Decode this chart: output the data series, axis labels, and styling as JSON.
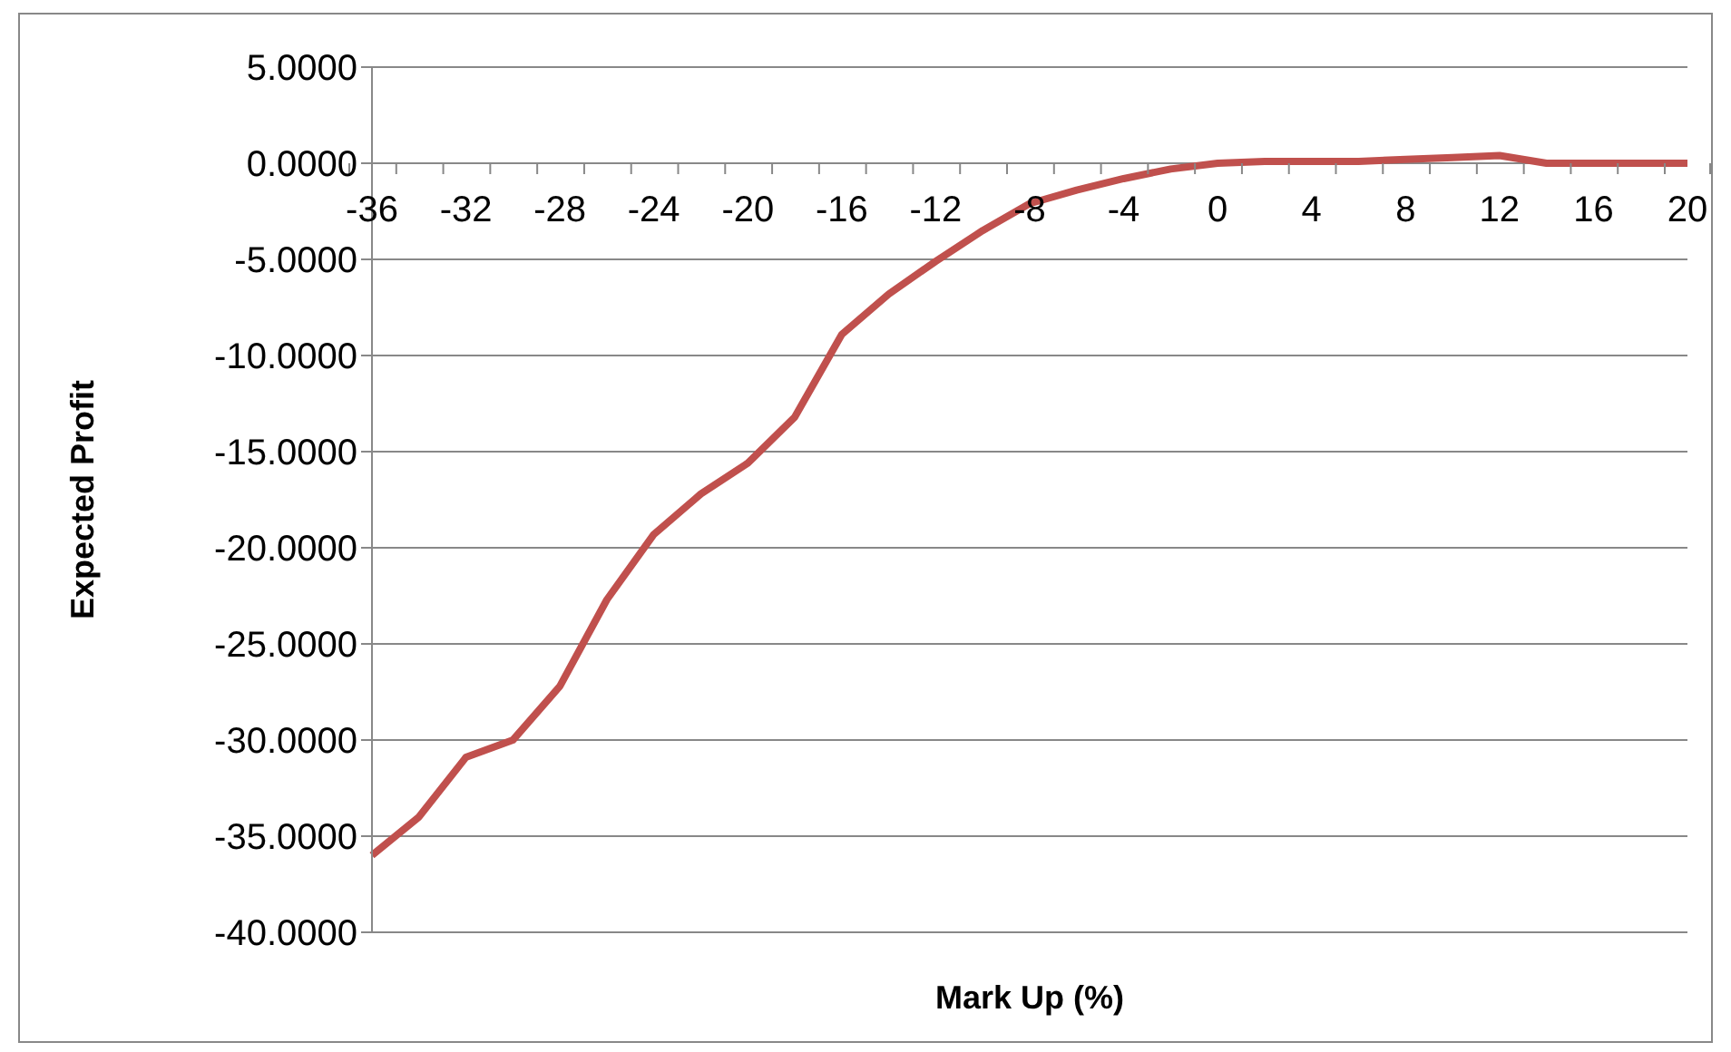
{
  "chart_data": {
    "type": "line",
    "xlabel": "Mark Up (%)",
    "ylabel": "Expected Profit",
    "categories": [
      "-36",
      null,
      "-32",
      null,
      "-28",
      null,
      "-24",
      null,
      "-20",
      null,
      "-16",
      null,
      "-12",
      null,
      "-8",
      null,
      "-4",
      null,
      "0",
      null,
      "4",
      null,
      "8",
      null,
      "12",
      null,
      "16",
      null,
      "20"
    ],
    "values": [
      -36.0,
      -34.0,
      -30.9,
      -30.0,
      -27.2,
      -22.7,
      -19.3,
      -17.2,
      -15.6,
      -13.2,
      -8.9,
      -6.8,
      -5.1,
      -3.5,
      -2.1,
      -1.4,
      -0.8,
      -0.3,
      0,
      0.1,
      0.1,
      0.1,
      0.2,
      0.3,
      0.4,
      0,
      0,
      0,
      0
    ],
    "color": "#c0504d",
    "ylim": [
      -40,
      5
    ],
    "yticks": [
      {
        "value": 5,
        "label": "5.0000"
      },
      {
        "value": 0,
        "label": "0.0000"
      },
      {
        "value": -5,
        "label": "-5.0000"
      },
      {
        "value": -10,
        "label": "-10.0000"
      },
      {
        "value": -15,
        "label": "-15.0000"
      },
      {
        "value": -20,
        "label": "-20.0000"
      },
      {
        "value": -25,
        "label": "-25.0000"
      },
      {
        "value": -30,
        "label": "-30.0000"
      },
      {
        "value": -35,
        "label": "-35.0000"
      },
      {
        "value": -40,
        "label": "-40.0000"
      }
    ],
    "grid": "y",
    "marker": "none",
    "line_style": "solid"
  }
}
